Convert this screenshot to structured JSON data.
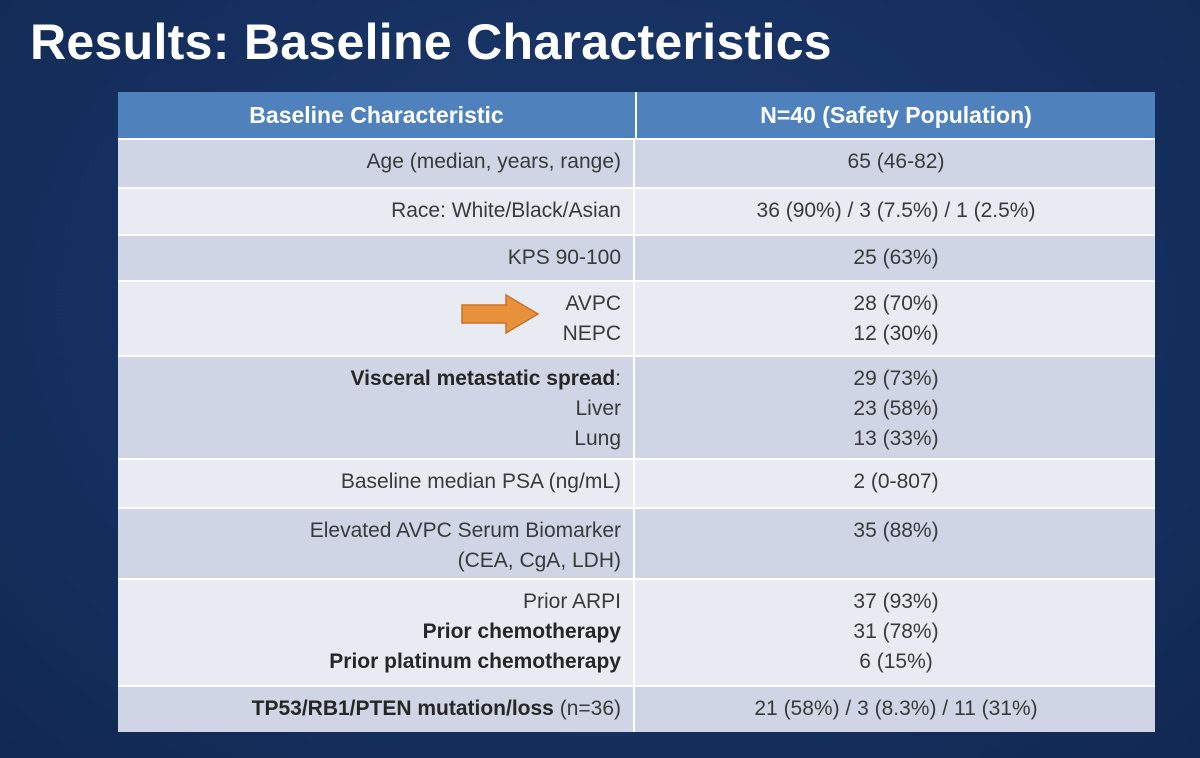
{
  "title": "Results: Baseline Characteristics",
  "table": {
    "header": [
      "Baseline Characteristic",
      "N=40 (Safety Population)"
    ],
    "rows": [
      {
        "label": [
          "Age (median, years, range)"
        ],
        "value": [
          "65 (46-82)"
        ]
      },
      {
        "label": [
          "Race: White/Black/Asian"
        ],
        "value": [
          "36 (90%) / 3 (7.5%) / 1 (2.5%)"
        ]
      },
      {
        "label": [
          "KPS 90-100"
        ],
        "value": [
          "25 (63%)"
        ]
      },
      {
        "label": [
          "AVPC",
          "NEPC"
        ],
        "value": [
          "28 (70%)",
          "12 (30%)"
        ]
      },
      {
        "label": [
          [
            {
              "text": "Visceral metastatic spread",
              "bold": true
            },
            {
              "text": ":"
            }
          ],
          "Liver",
          "Lung"
        ],
        "value": [
          "29 (73%)",
          "23 (58%)",
          "13 (33%)"
        ]
      },
      {
        "label": [
          "Baseline median PSA (ng/mL)"
        ],
        "value": [
          "2 (0-807)"
        ]
      },
      {
        "label": [
          "Elevated AVPC Serum Biomarker",
          "(CEA, CgA, LDH)"
        ],
        "value": [
          "35 (88%)"
        ]
      },
      {
        "label": [
          "Prior ARPI",
          [
            {
              "text": "Prior chemotherapy",
              "bold": true
            }
          ],
          [
            {
              "text": "Prior platinum chemotherapy",
              "bold": true
            }
          ]
        ],
        "value": [
          "37 (93%)",
          "31 (78%)",
          "6 (15%)"
        ]
      },
      {
        "label": [
          [
            {
              "text": "TP53/RB1/PTEN mutation/loss",
              "bold": true
            },
            {
              "text": " (n=36)"
            }
          ]
        ],
        "value": [
          "21 (58%) / 3 (8.3%) / 11 (31%)"
        ]
      }
    ]
  }
}
